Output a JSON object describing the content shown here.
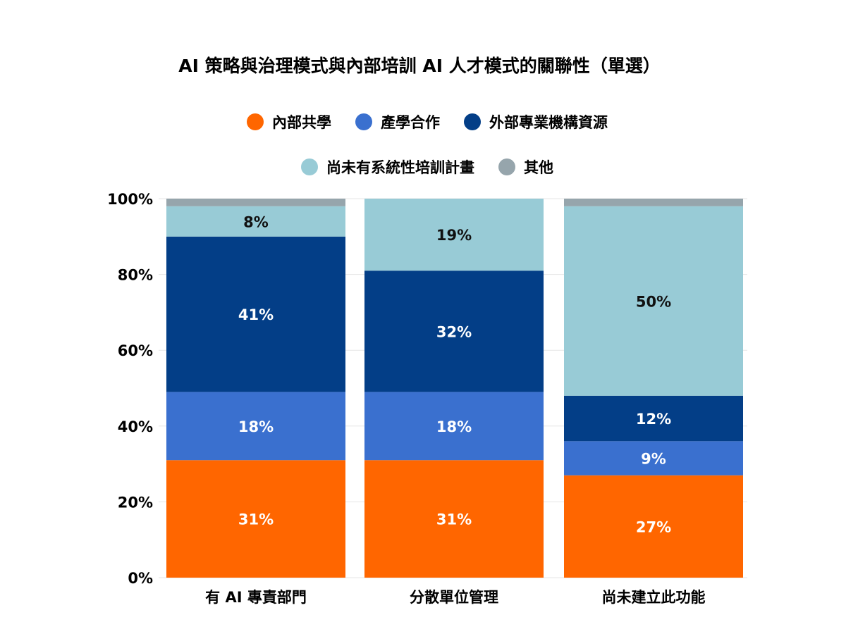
{
  "chart_data": {
    "type": "bar",
    "stacked": true,
    "title": "AI 策略與治理模式與內部培訓 AI 人才模式的關聯性（單選）",
    "xlabel": "",
    "ylabel": "",
    "ylim": [
      0,
      100
    ],
    "yticks": [
      "0%",
      "20%",
      "40%",
      "60%",
      "80%",
      "100%"
    ],
    "categories": [
      "有 AI 專責部門",
      "分散單位管理",
      "尚未建立此功能"
    ],
    "legend_position": "top",
    "grid": true,
    "series": [
      {
        "name": "內部共學",
        "color": "#FF6600",
        "values": [
          31,
          31,
          27
        ],
        "labels": [
          "31%",
          "31%",
          "27%"
        ],
        "label_color": "#ffffff"
      },
      {
        "name": "產學合作",
        "color": "#3A70CF",
        "values": [
          18,
          18,
          9
        ],
        "labels": [
          "18%",
          "18%",
          "9%"
        ],
        "label_color": "#ffffff"
      },
      {
        "name": "外部專業機構資源",
        "color": "#033E87",
        "values": [
          41,
          32,
          12
        ],
        "labels": [
          "41%",
          "32%",
          "12%"
        ],
        "label_color": "#ffffff"
      },
      {
        "name": "尚未有系統性培訓計畫",
        "color": "#98CBD6",
        "values": [
          8,
          19,
          50
        ],
        "labels": [
          "8%",
          "19%",
          "50%"
        ],
        "label_color": "#111111"
      },
      {
        "name": "其他",
        "color": "#96A5AC",
        "values": [
          2,
          0,
          2
        ],
        "labels": [
          "",
          "",
          ""
        ],
        "label_color": "#111111"
      }
    ]
  }
}
